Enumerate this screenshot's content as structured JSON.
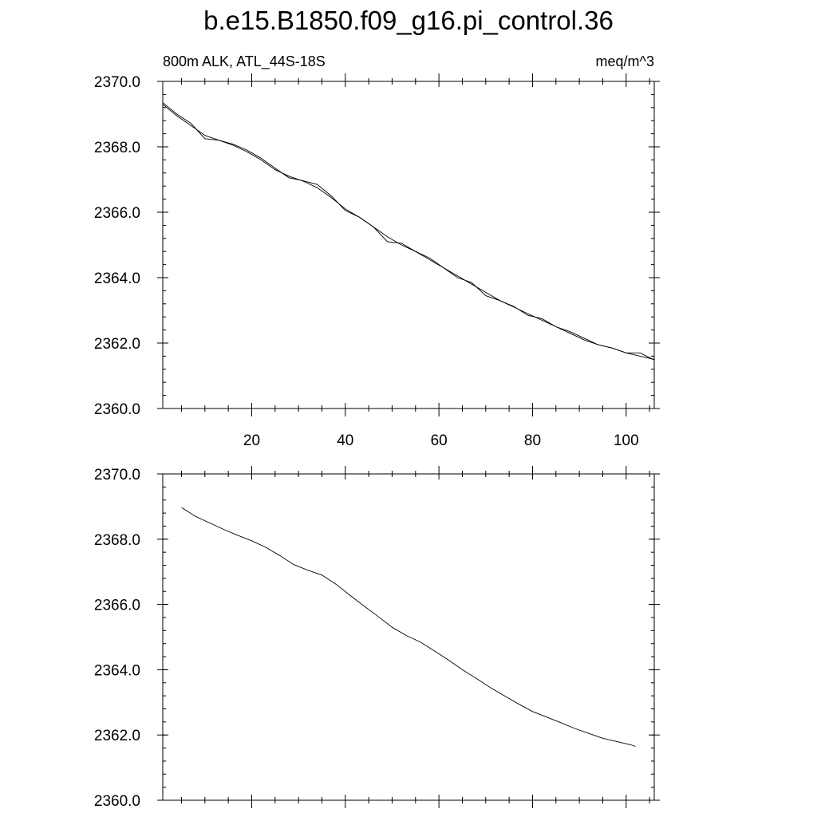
{
  "title": "b.e15.B1850.f09_g16.pi_control.36",
  "left_subtitle": "800m ALK, ATL_44S-18S",
  "right_subtitle": "meq/m^3",
  "chart_data": [
    {
      "type": "line",
      "panel": "top",
      "xlim": [
        1,
        106
      ],
      "ylim": [
        2360,
        2370
      ],
      "xticks": [
        20,
        40,
        60,
        80,
        100
      ],
      "xtick_labels": [
        "20",
        "40",
        "60",
        "80",
        "100"
      ],
      "yticks": [
        2360,
        2362,
        2364,
        2366,
        2368,
        2370
      ],
      "ytick_labels": [
        "2360.0",
        "2362.0",
        "2364.0",
        "2366.0",
        "2368.0",
        "2370.0"
      ],
      "series": [
        {
          "style": "annual",
          "x": [
            1,
            4,
            7,
            10,
            13,
            16,
            19,
            22,
            25,
            28,
            31,
            34,
            37,
            40,
            43,
            46,
            49,
            52,
            55,
            58,
            61,
            64,
            67,
            70,
            73,
            76,
            79,
            82,
            85,
            88,
            91,
            94,
            97,
            100,
            103,
            106
          ],
          "y": [
            2369.35,
            2369.0,
            2368.72,
            2368.25,
            2368.2,
            2368.08,
            2367.9,
            2367.65,
            2367.35,
            2367.05,
            2366.96,
            2366.85,
            2366.5,
            2366.05,
            2365.85,
            2365.55,
            2365.1,
            2365.05,
            2364.8,
            2364.6,
            2364.3,
            2364.0,
            2363.85,
            2363.45,
            2363.3,
            2363.12,
            2362.85,
            2362.75,
            2362.5,
            2362.35,
            2362.15,
            2361.95,
            2361.85,
            2361.7,
            2361.7,
            2361.48
          ]
        },
        {
          "style": "smoothed",
          "x": [
            1,
            4,
            7,
            10,
            13,
            16,
            19,
            22,
            25,
            28,
            31,
            34,
            37,
            40,
            43,
            46,
            49,
            52,
            55,
            58,
            61,
            64,
            67,
            70,
            73,
            76,
            79,
            82,
            85,
            88,
            91,
            94,
            97,
            100,
            103,
            106
          ],
          "y": [
            2369.3,
            2368.95,
            2368.65,
            2368.35,
            2368.2,
            2368.05,
            2367.85,
            2367.6,
            2367.3,
            2367.1,
            2366.95,
            2366.75,
            2366.45,
            2366.1,
            2365.85,
            2365.55,
            2365.25,
            2365.0,
            2364.8,
            2364.55,
            2364.3,
            2364.05,
            2363.8,
            2363.55,
            2363.3,
            2363.1,
            2362.9,
            2362.7,
            2362.5,
            2362.3,
            2362.1,
            2361.95,
            2361.85,
            2361.7,
            2361.6,
            2361.5
          ]
        }
      ]
    },
    {
      "type": "line",
      "panel": "bottom",
      "xlim": [
        1,
        106
      ],
      "ylim": [
        2360,
        2370
      ],
      "xticks": [
        20,
        40,
        60,
        80,
        100
      ],
      "yticks": [
        2360,
        2362,
        2364,
        2366,
        2368,
        2370
      ],
      "ytick_labels": [
        "2360.0",
        "2362.0",
        "2364.0",
        "2366.0",
        "2368.0",
        "2370.0"
      ],
      "series": [
        {
          "style": "smoothed",
          "x": [
            5,
            8,
            11,
            14,
            17,
            20,
            23,
            26,
            29,
            32,
            35,
            38,
            41,
            44,
            47,
            50,
            53,
            56,
            59,
            62,
            65,
            68,
            71,
            74,
            77,
            80,
            83,
            86,
            89,
            92,
            95,
            98,
            101,
            102
          ],
          "y": [
            2368.97,
            2368.7,
            2368.5,
            2368.3,
            2368.12,
            2367.95,
            2367.75,
            2367.5,
            2367.22,
            2367.05,
            2366.9,
            2366.62,
            2366.28,
            2365.95,
            2365.63,
            2365.3,
            2365.05,
            2364.85,
            2364.58,
            2364.3,
            2364.0,
            2363.73,
            2363.45,
            2363.2,
            2362.95,
            2362.72,
            2362.55,
            2362.38,
            2362.2,
            2362.05,
            2361.9,
            2361.8,
            2361.7,
            2361.65
          ]
        }
      ]
    }
  ]
}
